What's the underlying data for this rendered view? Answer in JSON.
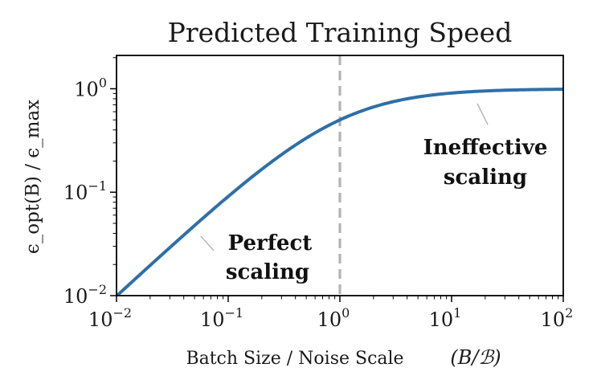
{
  "chart_data": {
    "type": "line",
    "title": "Predicted Training Speed",
    "xlabel": "Batch Size / Noise Scale",
    "xlabel_math": "(B/ℬ)",
    "ylabel": "ϵ_opt(B) / ϵ_max",
    "x_scale": "log",
    "y_scale": "log",
    "xlim": [
      0.01,
      100
    ],
    "ylim": [
      0.01,
      2.1
    ],
    "x_ticks": [
      {
        "base": "10",
        "exp": "−2",
        "value": 0.01
      },
      {
        "base": "10",
        "exp": "−1",
        "value": 0.1
      },
      {
        "base": "10",
        "exp": "0",
        "value": 1
      },
      {
        "base": "10",
        "exp": "1",
        "value": 10
      },
      {
        "base": "10",
        "exp": "2",
        "value": 100
      }
    ],
    "y_ticks": [
      {
        "base": "10",
        "exp": "−2",
        "value": 0.01
      },
      {
        "base": "10",
        "exp": "−1",
        "value": 0.1
      },
      {
        "base": "10",
        "exp": "0",
        "value": 1
      }
    ],
    "series": [
      {
        "color": "#2f6fa8",
        "function": "x/(1+x)",
        "x": [
          0.01,
          0.02,
          0.05,
          0.1,
          0.2,
          0.5,
          1,
          2,
          5,
          10,
          20,
          50,
          100
        ],
        "y": [
          0.0099,
          0.0196,
          0.0476,
          0.0909,
          0.1667,
          0.3333,
          0.5,
          0.6667,
          0.8333,
          0.9091,
          0.9524,
          0.9804,
          0.9901
        ]
      }
    ],
    "reference_line": {
      "x": 1,
      "style": "dashed",
      "color": "#b3b3b3"
    },
    "annotations": [
      {
        "lines": [
          "Perfect",
          "scaling"
        ],
        "bold": true
      },
      {
        "lines": [
          "Ineffective",
          "scaling"
        ],
        "bold": true
      }
    ],
    "grid": false,
    "legend": "none"
  }
}
